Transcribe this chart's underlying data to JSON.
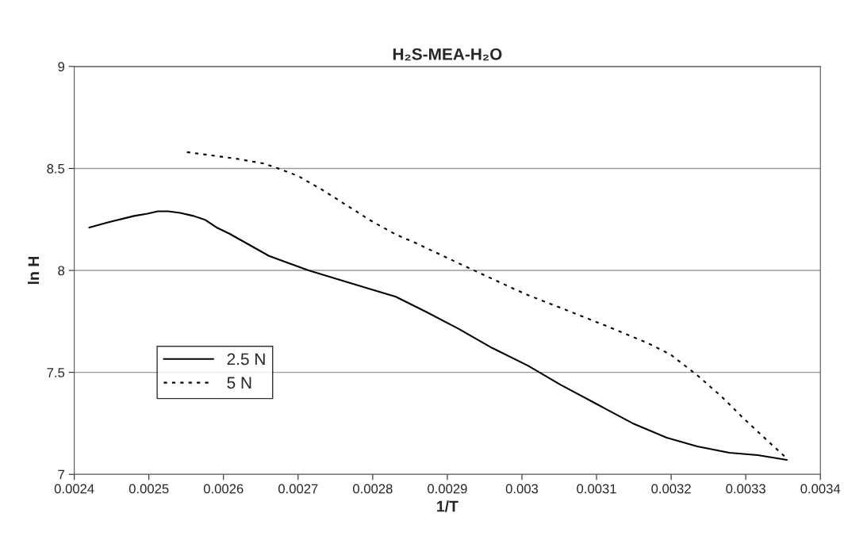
{
  "chart_data": {
    "type": "line",
    "title": "H₂S-MEA-H₂O",
    "xlabel": "1/T",
    "ylabel": "ln H",
    "xlim": [
      0.0024,
      0.0034
    ],
    "xticks": [
      0.0024,
      0.0025,
      0.0026,
      0.0027,
      0.0028,
      0.0029,
      0.003,
      0.0031,
      0.0032,
      0.0033,
      0.0034
    ],
    "ylim": [
      7,
      9
    ],
    "yticks": [
      7,
      7.5,
      8,
      8.5,
      9
    ],
    "grid": "y",
    "legend": "left",
    "marker": "none",
    "series": [
      {
        "name": "2.5 N",
        "color": "#000000",
        "line_style": "solid",
        "x": [
          0.00242,
          0.002445,
          0.00248,
          0.002498,
          0.002512,
          0.002526,
          0.002542,
          0.00256,
          0.002576,
          0.002592,
          0.002608,
          0.002661,
          0.002679,
          0.002714,
          0.002749,
          0.002792,
          0.002831,
          0.002872,
          0.002915,
          0.00296,
          0.003008,
          0.003052,
          0.0031,
          0.003148,
          0.003194,
          0.003235,
          0.003278,
          0.003316,
          0.003355
        ],
        "values": [
          8.21,
          8.235,
          8.267,
          8.278,
          8.29,
          8.29,
          8.282,
          8.267,
          8.247,
          8.208,
          8.18,
          8.071,
          8.047,
          8.0,
          7.961,
          7.914,
          7.871,
          7.796,
          7.714,
          7.62,
          7.533,
          7.439,
          7.345,
          7.251,
          7.18,
          7.137,
          7.106,
          7.094,
          7.071
        ]
      },
      {
        "name": "5 N",
        "color": "#000000",
        "line_style": "dotted",
        "x": [
          0.002551,
          0.00259,
          0.002615,
          0.002653,
          0.002675,
          0.0027,
          0.002732,
          0.002764,
          0.002796,
          0.002831,
          0.002856,
          0.002924,
          0.002989,
          0.003009,
          0.00308,
          0.003115,
          0.003148,
          0.003169,
          0.003199,
          0.003235,
          0.003268,
          0.003298,
          0.003328,
          0.003354
        ],
        "values": [
          8.58,
          8.561,
          8.549,
          8.525,
          8.498,
          8.463,
          8.396,
          8.322,
          8.247,
          8.176,
          8.137,
          8.02,
          7.91,
          7.878,
          7.776,
          7.725,
          7.675,
          7.643,
          7.588,
          7.486,
          7.38,
          7.271,
          7.169,
          7.082
        ]
      }
    ]
  }
}
